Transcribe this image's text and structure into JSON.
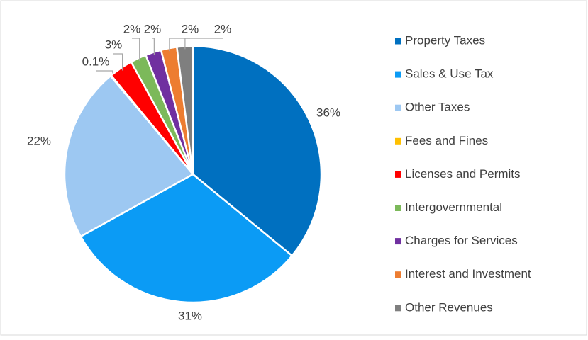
{
  "chart_data": {
    "type": "pie",
    "categories": [
      "Property Taxes",
      "Sales & Use Tax",
      "Other Taxes",
      "Fees and Fines",
      "Licenses and Permits",
      "Intergovernmental",
      "Charges for Services",
      "Interest and Investment",
      "Other Revenues"
    ],
    "values": [
      36,
      31,
      22,
      0.1,
      3,
      2,
      2,
      2,
      2
    ],
    "value_labels": [
      "36%",
      "31%",
      "22%",
      "0.1%",
      "3%",
      "2%",
      "2%",
      "2%",
      "2%"
    ],
    "colors": [
      "#0070c0",
      "#0b9bf5",
      "#9dc8f2",
      "#ffc000",
      "#ff0000",
      "#7cb95a",
      "#7030a0",
      "#ed7d31",
      "#7f7f7f"
    ],
    "legend": "right"
  }
}
